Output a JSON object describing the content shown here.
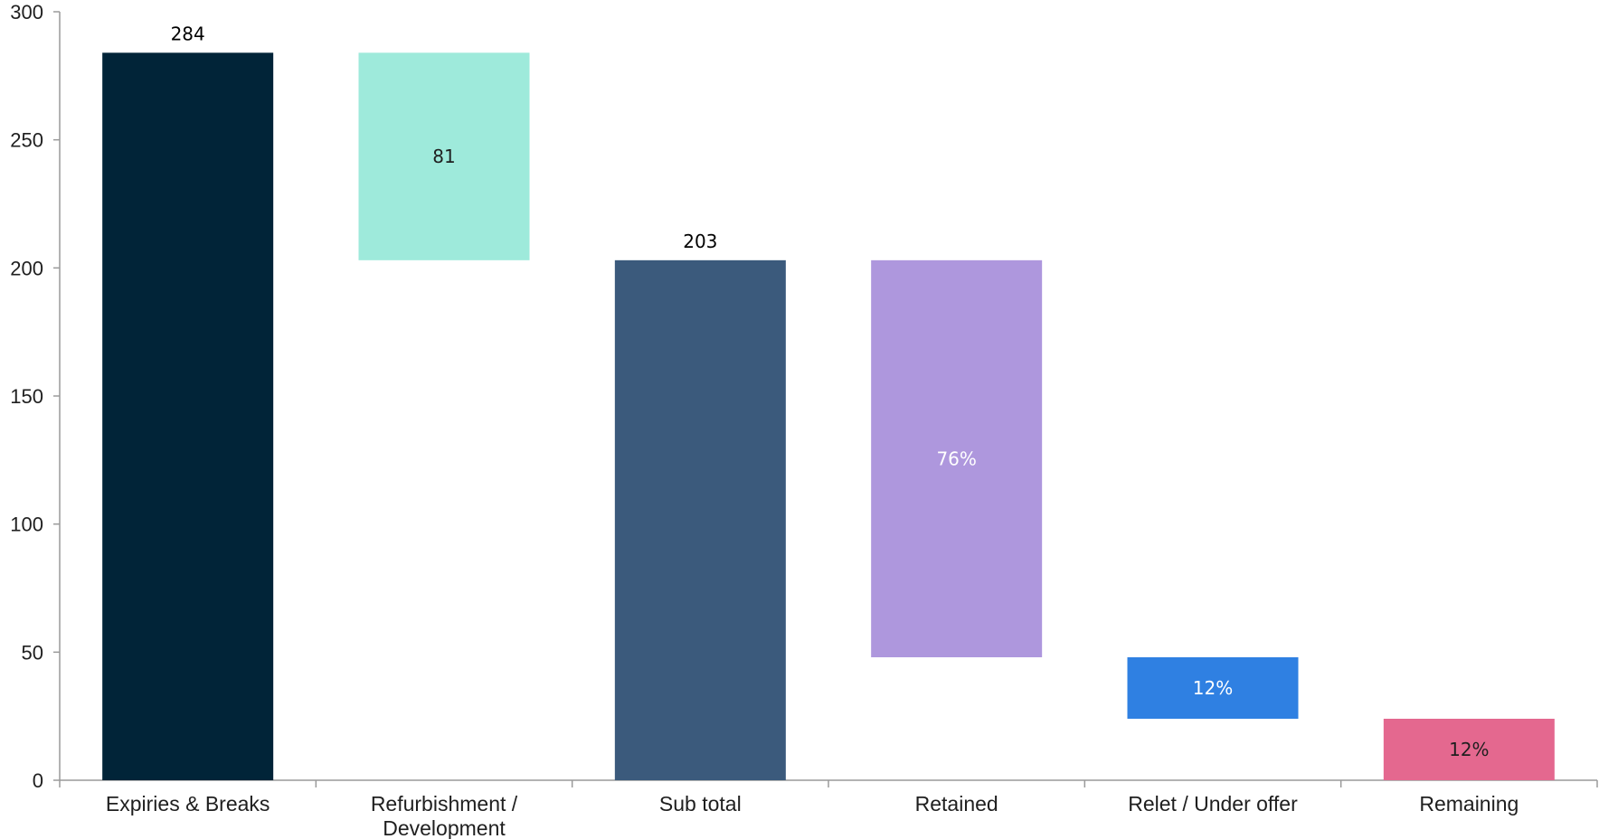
{
  "chart_data": {
    "type": "waterfall",
    "title": "",
    "xlabel": "",
    "ylabel": "",
    "ylim": [
      0,
      300
    ],
    "yticks": [
      0,
      50,
      100,
      150,
      200,
      250,
      300
    ],
    "grid": false,
    "legend": "none",
    "categories": [
      {
        "label_lines": [
          "Expiries & Breaks"
        ]
      },
      {
        "label_lines": [
          "Refurbishment /",
          "Development"
        ]
      },
      {
        "label_lines": [
          "Sub total"
        ]
      },
      {
        "label_lines": [
          "Retained"
        ]
      },
      {
        "label_lines": [
          "Relet / Under offer"
        ]
      },
      {
        "label_lines": [
          "Remaining"
        ]
      }
    ],
    "bars": [
      {
        "base": 0,
        "top": 284,
        "color": "#012438",
        "label": "284",
        "label_position": "above",
        "label_color": "#000000"
      },
      {
        "base": 203,
        "top": 284,
        "color": "#9eeadb",
        "label": "81",
        "label_position": "inside",
        "label_color": "#1f1f1f"
      },
      {
        "base": 0,
        "top": 203,
        "color": "#3b5a7c",
        "label": "203",
        "label_position": "above",
        "label_color": "#000000"
      },
      {
        "base": 48,
        "top": 203,
        "color": "#ae97dd",
        "label": "76%",
        "label_position": "inside",
        "label_color": "#ffffff"
      },
      {
        "base": 24,
        "top": 48,
        "color": "#2f80e2",
        "label": "12%",
        "label_position": "inside",
        "label_color": "#ffffff"
      },
      {
        "base": 0,
        "top": 24,
        "color": "#e4688f",
        "label": "12%",
        "label_position": "inside",
        "label_color": "#1f1f1f"
      }
    ]
  }
}
